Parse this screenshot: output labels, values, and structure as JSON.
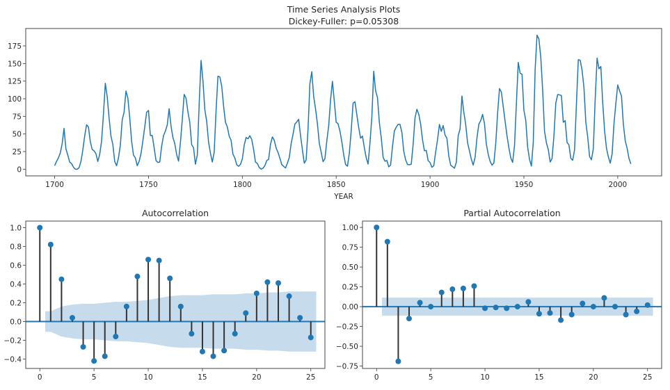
{
  "colors": {
    "line": "#1f77b4",
    "stem": "#333333",
    "band": "#c6dbec",
    "axis": "#555555",
    "text": "#262626"
  },
  "chart_data": [
    {
      "type": "line",
      "title": "Time Series Analysis Plots",
      "subtitle": "Dickey-Fuller: p=0.05308",
      "xlabel": "YEAR",
      "ylabel": "",
      "xlim": [
        1684.6,
        2023.4
      ],
      "ylim": [
        -9.5,
        199.7
      ],
      "xticks": [
        1700,
        1750,
        1800,
        1850,
        1900,
        1950,
        2000
      ],
      "xtick_labels": [
        "1700",
        "1750",
        "1800",
        "1850",
        "1900",
        "1950",
        "2000"
      ],
      "yticks": [
        0,
        25,
        50,
        75,
        100,
        125,
        150,
        175
      ],
      "ytick_labels": [
        "0",
        "25",
        "50",
        "75",
        "100",
        "125",
        "150",
        "175"
      ],
      "x_start": 1700,
      "values": [
        5,
        11,
        16,
        23,
        36,
        58,
        29,
        20,
        10,
        8,
        3,
        0,
        0,
        2,
        11,
        27,
        47,
        63,
        60,
        39,
        28,
        26,
        22,
        11,
        21,
        40,
        78,
        122,
        103,
        73,
        47,
        35,
        11,
        5,
        16,
        34,
        70,
        81,
        111,
        101,
        73,
        40,
        20,
        16,
        5,
        11,
        22,
        40,
        60,
        80.9,
        83.4,
        47.7,
        47.8,
        30.7,
        12.2,
        9.6,
        10.2,
        32.4,
        47.6,
        54,
        62.9,
        85.9,
        61.2,
        45.1,
        36.4,
        20.9,
        11.4,
        37.8,
        69.8,
        106.1,
        100.8,
        81.6,
        66.5,
        34.8,
        30.6,
        7,
        19.8,
        92.5,
        154.4,
        125.9,
        84.8,
        68.1,
        38.5,
        22.8,
        10.2,
        24.1,
        82.9,
        132,
        130.9,
        118.1,
        89.9,
        66.6,
        60,
        46.9,
        41,
        21.3,
        16,
        6.4,
        4.1,
        6.8,
        14.5,
        34,
        45,
        43.1,
        47.5,
        42.2,
        28.1,
        10.1,
        8.1,
        2.5,
        0,
        1.4,
        5,
        12.2,
        13.9,
        35.4,
        45.8,
        41.1,
        30.1,
        23.9,
        15.6,
        6.6,
        4,
        1.8,
        8.5,
        16.6,
        36.3,
        49.6,
        64.2,
        67,
        70.9,
        47.8,
        27.5,
        8.5,
        13.2,
        56.9,
        121.5,
        138.3,
        103.2,
        85.7,
        64.6,
        36.7,
        24.2,
        10.7,
        15,
        40.1,
        61.5,
        98.5,
        124.7,
        96.3,
        66.6,
        64.5,
        54.1,
        39,
        20.6,
        6.7,
        4.3,
        22.7,
        54.8,
        93.8,
        95.8,
        77.2,
        59.1,
        44,
        47,
        30.5,
        16.3,
        7.3,
        37.6,
        74,
        139,
        111.2,
        101.6,
        66.2,
        44.7,
        17,
        11.3,
        12.4,
        3.4,
        6,
        32.3,
        54.3,
        59.7,
        63.7,
        63.5,
        52.2,
        25.4,
        13.1,
        6.8,
        6.3,
        7.1,
        35.6,
        73,
        85.1,
        78,
        64,
        41.8,
        26.2,
        26.7,
        12.1,
        9.5,
        2.7,
        5,
        24.4,
        42,
        63.5,
        53.8,
        62,
        48.5,
        43.9,
        18.6,
        5.7,
        3.6,
        1.4,
        9.6,
        47.4,
        57.1,
        103.9,
        80.6,
        63.6,
        37.6,
        26.1,
        14.2,
        5.8,
        16.7,
        44.3,
        63.9,
        69,
        77.8,
        64.9,
        35.7,
        21.2,
        11.1,
        5.7,
        8.7,
        36.1,
        79.7,
        114.4,
        109.6,
        88.8,
        67.8,
        47.5,
        30.6,
        16.3,
        9.6,
        33.2,
        92.6,
        151.6,
        136.3,
        134.7,
        83.9,
        69.4,
        31.5,
        13.9,
        4.4,
        38,
        141.7,
        190.2,
        184.8,
        159,
        112.3,
        53.9,
        37.5,
        27.9,
        10.2,
        15.1,
        47,
        93.8,
        105.9,
        105.5,
        104.5,
        66.6,
        68.9,
        38,
        34.5,
        15.5,
        12.6,
        27.5,
        92.5,
        155.4,
        154.6,
        140.5,
        115.9,
        66.6,
        45.9,
        17.9,
        13.4,
        29.2,
        100.2,
        157.6,
        142.6,
        145.7,
        94.3,
        54.6,
        29.9,
        17.5,
        8.6,
        21.5,
        64.3,
        93.3,
        119.6,
        111,
        104,
        63.7,
        40.4,
        29.8,
        15.2,
        7.5
      ]
    },
    {
      "type": "stem",
      "title": "Autocorrelation",
      "xlim": [
        -1.3,
        26.3
      ],
      "ylim": [
        -0.5,
        1.07
      ],
      "xticks": [
        0,
        5,
        10,
        15,
        20,
        25
      ],
      "xtick_labels": [
        "0",
        "5",
        "10",
        "15",
        "20",
        "25"
      ],
      "yticks": [
        -0.4,
        -0.2,
        0.0,
        0.2,
        0.4,
        0.6,
        0.8,
        1.0
      ],
      "ytick_labels": [
        "−0.4",
        "−0.2",
        "0.0",
        "0.2",
        "0.4",
        "0.6",
        "0.8",
        "1.0"
      ],
      "lags": [
        0,
        1,
        2,
        3,
        4,
        5,
        6,
        7,
        8,
        9,
        10,
        11,
        12,
        13,
        14,
        15,
        16,
        17,
        18,
        19,
        20,
        21,
        22,
        23,
        24,
        25
      ],
      "values": [
        1.0,
        0.82,
        0.45,
        0.04,
        -0.27,
        -0.42,
        -0.37,
        -0.16,
        0.16,
        0.48,
        0.66,
        0.65,
        0.46,
        0.16,
        -0.13,
        -0.32,
        -0.37,
        -0.31,
        -0.13,
        0.09,
        0.3,
        0.42,
        0.41,
        0.27,
        0.04,
        -0.17
      ],
      "confint": [
        0.11,
        0.11,
        0.16,
        0.18,
        0.19,
        0.19,
        0.2,
        0.21,
        0.21,
        0.22,
        0.23,
        0.25,
        0.27,
        0.28,
        0.28,
        0.28,
        0.29,
        0.29,
        0.29,
        0.3,
        0.3,
        0.31,
        0.31,
        0.32,
        0.32,
        0.32
      ]
    },
    {
      "type": "stem",
      "title": "Partial Autocorrelation",
      "xlim": [
        -1.3,
        26.3
      ],
      "ylim": [
        -0.78,
        1.08
      ],
      "xticks": [
        0,
        5,
        10,
        15,
        20,
        25
      ],
      "xtick_labels": [
        "0",
        "5",
        "10",
        "15",
        "20",
        "25"
      ],
      "yticks": [
        -0.75,
        -0.5,
        -0.25,
        0.0,
        0.25,
        0.5,
        0.75,
        1.0
      ],
      "ytick_labels": [
        "−0.75",
        "−0.50",
        "−0.25",
        "0.00",
        "0.25",
        "0.50",
        "0.75",
        "1.00"
      ],
      "lags": [
        0,
        1,
        2,
        3,
        4,
        5,
        6,
        7,
        8,
        9,
        10,
        11,
        12,
        13,
        14,
        15,
        16,
        17,
        18,
        19,
        20,
        21,
        22,
        23,
        24,
        25
      ],
      "values": [
        1.0,
        0.82,
        -0.69,
        -0.15,
        0.05,
        0.0,
        0.18,
        0.22,
        0.23,
        0.26,
        -0.02,
        -0.01,
        -0.02,
        0.0,
        0.06,
        -0.09,
        -0.08,
        -0.17,
        -0.1,
        0.04,
        0.0,
        0.11,
        0.0,
        -0.1,
        -0.06,
        0.02
      ],
      "confint": 0.114
    }
  ]
}
